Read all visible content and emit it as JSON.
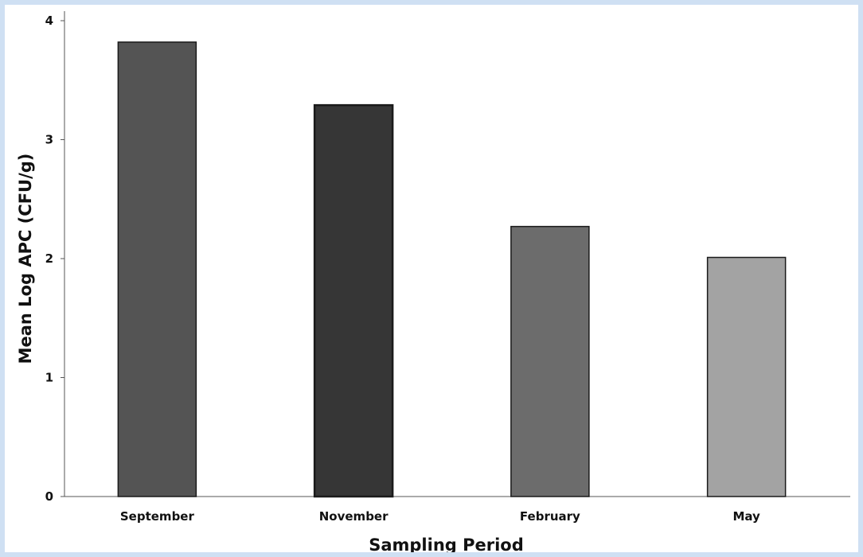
{
  "chart_data": {
    "type": "bar",
    "title": "",
    "xlabel": "Sampling Period",
    "ylabel": "Mean Log APC (CFU/g)",
    "categories": [
      "September",
      "November",
      "February",
      "May"
    ],
    "values": [
      3.82,
      3.29,
      2.27,
      2.01
    ],
    "ylim": [
      0,
      4
    ],
    "yticks": [
      "0",
      "1",
      "2",
      "3",
      "4"
    ],
    "grid": false,
    "legend": "none",
    "bar_colors": [
      "#545454",
      "#363636",
      "#6c6c6c",
      "#a3a3a3"
    ],
    "bar_stroke": "#1a1a1a"
  }
}
